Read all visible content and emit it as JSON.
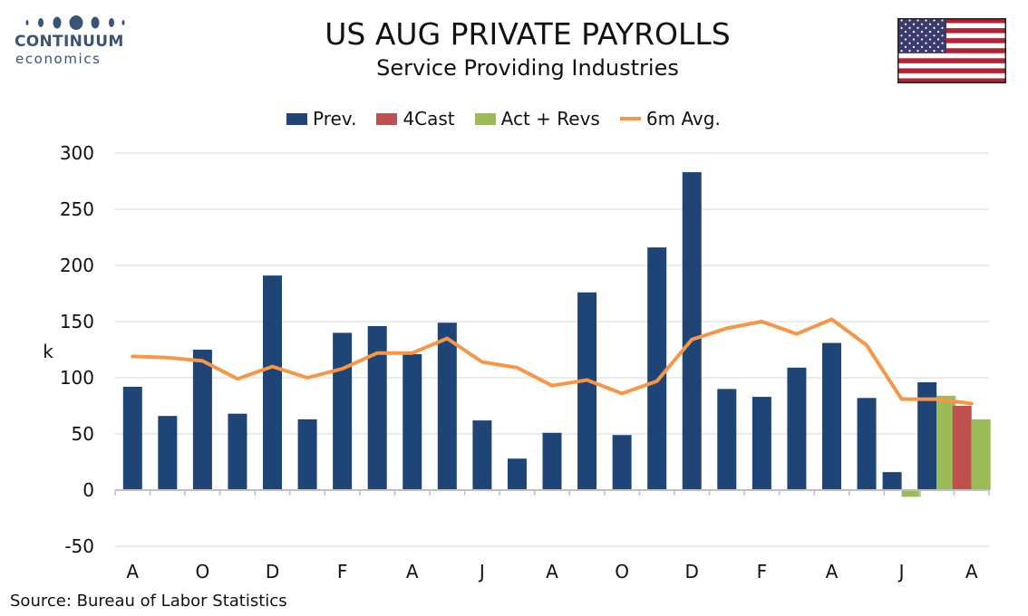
{
  "logo": {
    "word": "CONTINUUM",
    "sub": "economics"
  },
  "header": {
    "title": "US AUG PRIVATE PAYROLLS",
    "subtitle": "Service Providing Industries"
  },
  "source": "Source: Bureau of Labor Statistics",
  "colors": {
    "prev": "#1f4476",
    "forecast": "#c0504d",
    "actual": "#9bbb59",
    "avg": "#f79646",
    "logo": "#3a5378"
  },
  "chart_data": {
    "type": "bar",
    "title": "US AUG PRIVATE PAYROLLS",
    "subtitle": "Service Providing Industries",
    "ylabel": "k",
    "ylim": [
      -50,
      300
    ],
    "yticks": [
      300,
      250,
      200,
      150,
      100,
      50,
      0,
      -50
    ],
    "grid": true,
    "legend_position": "top",
    "x_labels": [
      "A",
      "O",
      "D",
      "F",
      "A",
      "J",
      "A",
      "O",
      "D",
      "F",
      "A",
      "J",
      "A"
    ],
    "x_label_every": 2,
    "legend": [
      "Prev.",
      "4Cast",
      "Act + Revs",
      "6m Avg."
    ],
    "series": [
      {
        "name": "Prev.",
        "kind": "bar",
        "values": [
          92,
          66,
          125,
          68,
          191,
          63,
          140,
          146,
          121,
          149,
          62,
          28,
          51,
          176,
          49,
          216,
          283,
          90,
          83,
          109,
          131,
          82,
          16,
          96,
          null
        ]
      },
      {
        "name": "4Cast",
        "kind": "bar",
        "values": [
          null,
          null,
          null,
          null,
          null,
          null,
          null,
          null,
          null,
          null,
          null,
          null,
          null,
          null,
          null,
          null,
          null,
          null,
          null,
          null,
          null,
          null,
          null,
          null,
          75
        ]
      },
      {
        "name": "Act + Revs",
        "kind": "bar",
        "values": [
          null,
          null,
          null,
          null,
          null,
          null,
          null,
          null,
          null,
          null,
          null,
          null,
          null,
          null,
          null,
          null,
          null,
          null,
          null,
          null,
          null,
          null,
          -6,
          84,
          63
        ]
      },
      {
        "name": "6m Avg.",
        "kind": "line",
        "values": [
          119,
          118,
          115,
          99,
          110,
          100,
          108,
          122,
          122,
          135,
          114,
          109,
          93,
          98,
          86,
          97,
          134,
          144,
          150,
          139,
          152,
          129,
          81,
          81,
          77
        ]
      }
    ]
  }
}
